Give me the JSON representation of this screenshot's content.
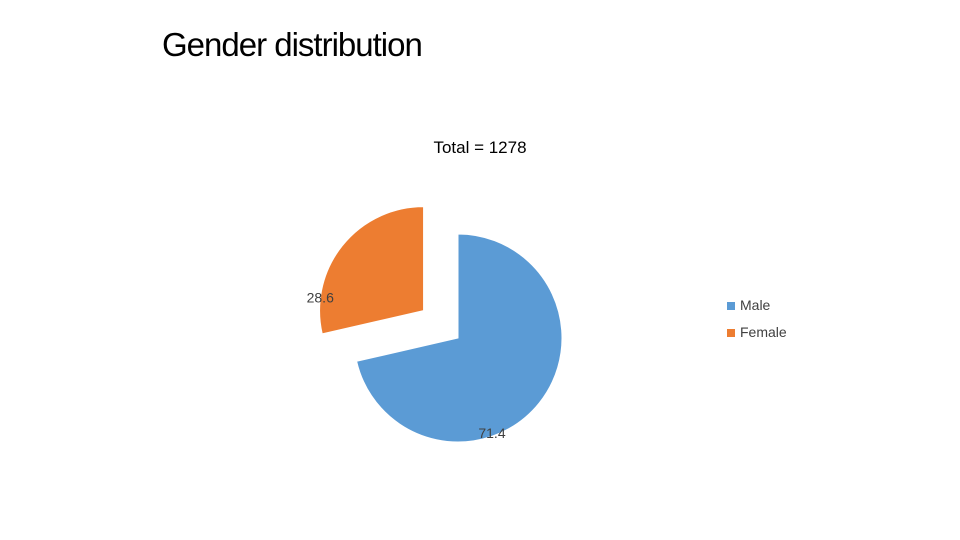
{
  "slide": {
    "title": "Gender distribution"
  },
  "chart_data": {
    "type": "pie",
    "title": "Total = 1278",
    "categories": [
      "Male",
      "Female"
    ],
    "values": [
      71.4,
      28.6
    ],
    "data_labels": [
      "71.4",
      "28.6"
    ],
    "colors": [
      "#5b9bd5",
      "#ed7d31"
    ],
    "exploded": [
      "Female"
    ],
    "legend_position": "right"
  }
}
